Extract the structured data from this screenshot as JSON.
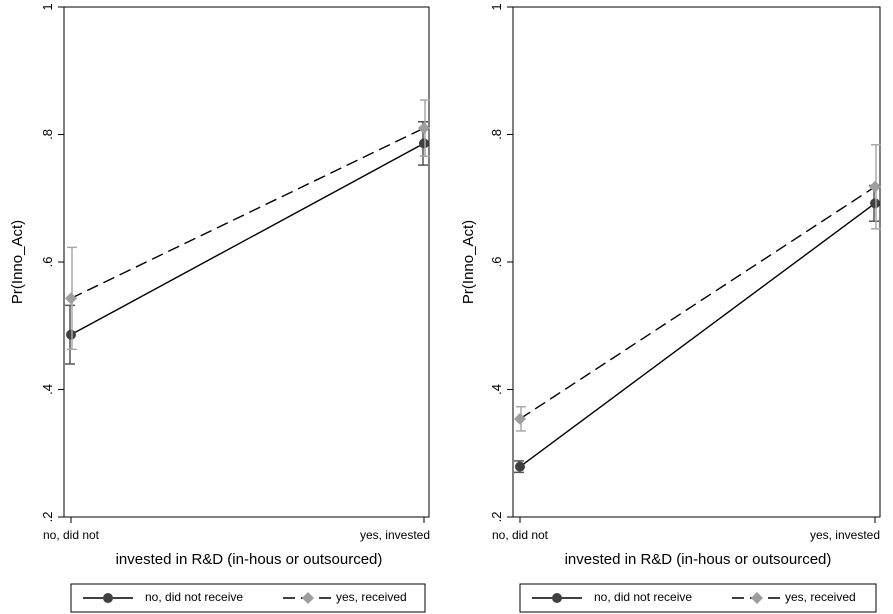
{
  "chart_data": [
    {
      "type": "line",
      "title": "",
      "xlabel": "invested in R&D (in-hous or outsourced)",
      "ylabel": "Pr(Inno_Act)",
      "ylim": [
        0.2,
        1.0
      ],
      "yticks": [
        {
          "value": 0.2,
          "label": ".2"
        },
        {
          "value": 0.4,
          "label": ".4"
        },
        {
          "value": 0.6,
          "label": ".6"
        },
        {
          "value": 0.8,
          "label": ".8"
        },
        {
          "value": 1.0,
          "label": "1"
        }
      ],
      "categories": [
        "no, did not",
        "yes, invested"
      ],
      "grid": false,
      "legend_position": "bottom",
      "series": [
        {
          "name": "no, did not receive",
          "style": "solid",
          "marker": "circle",
          "color": "#404040",
          "values": [
            0.486,
            0.786
          ],
          "ci_low": [
            0.44,
            0.752
          ],
          "ci_high": [
            0.532,
            0.82
          ]
        },
        {
          "name": "yes, received",
          "style": "dashed",
          "marker": "diamond",
          "color": "#9e9e9e",
          "values": [
            0.543,
            0.81
          ],
          "ci_low": [
            0.463,
            0.766
          ],
          "ci_high": [
            0.623,
            0.854
          ]
        }
      ]
    },
    {
      "type": "line",
      "title": "",
      "xlabel": "invested in R&D (in-hous or outsourced)",
      "ylabel": "Pr(Inno_Act)",
      "ylim": [
        0.2,
        1.0
      ],
      "yticks": [
        {
          "value": 0.2,
          "label": ".2"
        },
        {
          "value": 0.4,
          "label": ".4"
        },
        {
          "value": 0.6,
          "label": ".6"
        },
        {
          "value": 0.8,
          "label": ".8"
        },
        {
          "value": 1.0,
          "label": "1"
        }
      ],
      "categories": [
        "no, did not",
        "yes, invested"
      ],
      "grid": false,
      "legend_position": "bottom",
      "series": [
        {
          "name": "no, did not receive",
          "style": "solid",
          "marker": "circle",
          "color": "#404040",
          "values": [
            0.279,
            0.692
          ],
          "ci_low": [
            0.27,
            0.664
          ],
          "ci_high": [
            0.288,
            0.72
          ]
        },
        {
          "name": "yes, received",
          "style": "dashed",
          "marker": "diamond",
          "color": "#9e9e9e",
          "values": [
            0.354,
            0.718
          ],
          "ci_low": [
            0.335,
            0.652
          ],
          "ci_high": [
            0.373,
            0.784
          ]
        }
      ]
    }
  ]
}
